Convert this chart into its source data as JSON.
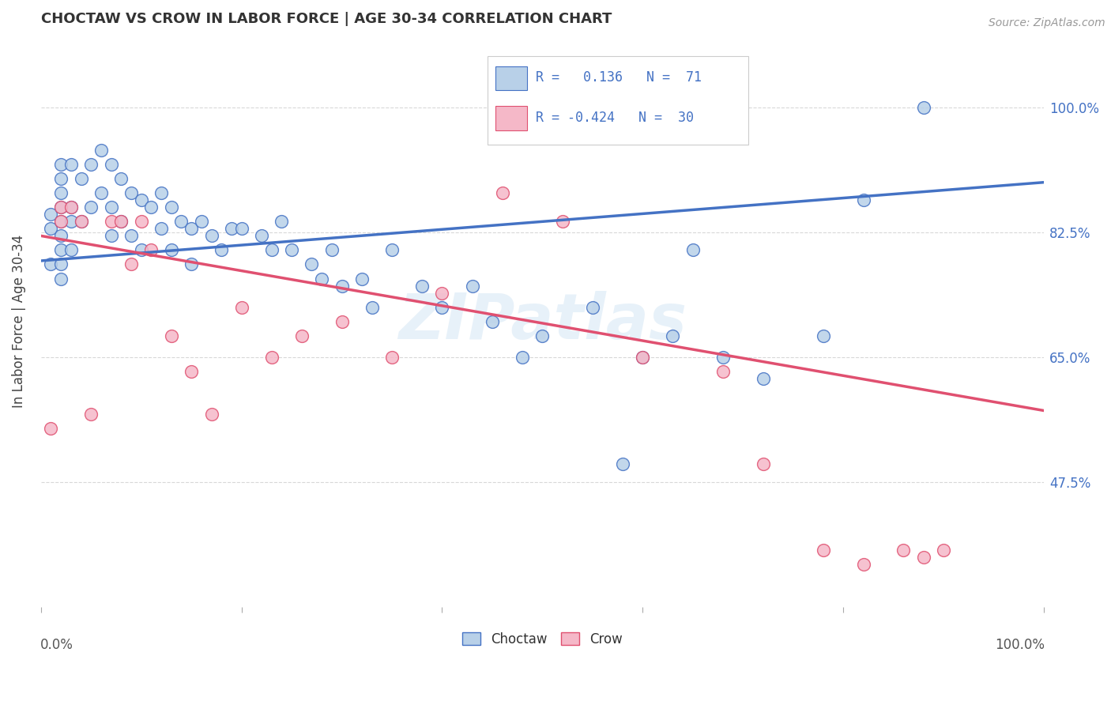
{
  "title": "CHOCTAW VS CROW IN LABOR FORCE | AGE 30-34 CORRELATION CHART",
  "source": "Source: ZipAtlas.com",
  "ylabel": "In Labor Force | Age 30-34",
  "xlim": [
    0.0,
    1.0
  ],
  "ylim": [
    0.3,
    1.1
  ],
  "y_ticks_right": [
    1.0,
    0.825,
    0.65,
    0.475
  ],
  "y_tick_labels_right": [
    "100.0%",
    "82.5%",
    "65.0%",
    "47.5%"
  ],
  "choctaw_color": "#b8d0e8",
  "crow_color": "#f5b8c8",
  "choctaw_line_color": "#4472c4",
  "crow_line_color": "#e05070",
  "r_choctaw": "0.136",
  "n_choctaw": "71",
  "r_crow": "-0.424",
  "n_crow": "30",
  "watermark": "ZIPatlas",
  "background_color": "#ffffff",
  "grid_color": "#d8d8d8",
  "choctaw_x": [
    0.01,
    0.01,
    0.01,
    0.02,
    0.02,
    0.02,
    0.02,
    0.02,
    0.02,
    0.02,
    0.02,
    0.02,
    0.03,
    0.03,
    0.03,
    0.03,
    0.04,
    0.04,
    0.05,
    0.05,
    0.06,
    0.06,
    0.07,
    0.07,
    0.07,
    0.08,
    0.08,
    0.09,
    0.09,
    0.1,
    0.1,
    0.11,
    0.12,
    0.12,
    0.13,
    0.13,
    0.14,
    0.15,
    0.15,
    0.16,
    0.17,
    0.18,
    0.19,
    0.2,
    0.22,
    0.23,
    0.24,
    0.25,
    0.27,
    0.28,
    0.29,
    0.3,
    0.32,
    0.33,
    0.35,
    0.38,
    0.4,
    0.43,
    0.45,
    0.48,
    0.5,
    0.55,
    0.58,
    0.6,
    0.63,
    0.65,
    0.68,
    0.72,
    0.78,
    0.82,
    0.88
  ],
  "choctaw_y": [
    0.85,
    0.83,
    0.78,
    0.92,
    0.9,
    0.88,
    0.86,
    0.84,
    0.82,
    0.8,
    0.78,
    0.76,
    0.92,
    0.86,
    0.84,
    0.8,
    0.9,
    0.84,
    0.92,
    0.86,
    0.94,
    0.88,
    0.92,
    0.86,
    0.82,
    0.9,
    0.84,
    0.88,
    0.82,
    0.87,
    0.8,
    0.86,
    0.88,
    0.83,
    0.86,
    0.8,
    0.84,
    0.83,
    0.78,
    0.84,
    0.82,
    0.8,
    0.83,
    0.83,
    0.82,
    0.8,
    0.84,
    0.8,
    0.78,
    0.76,
    0.8,
    0.75,
    0.76,
    0.72,
    0.8,
    0.75,
    0.72,
    0.75,
    0.7,
    0.65,
    0.68,
    0.72,
    0.5,
    0.65,
    0.68,
    0.8,
    0.65,
    0.62,
    0.68,
    0.87,
    1.0
  ],
  "crow_x": [
    0.01,
    0.02,
    0.02,
    0.03,
    0.04,
    0.05,
    0.07,
    0.08,
    0.09,
    0.1,
    0.11,
    0.13,
    0.15,
    0.17,
    0.2,
    0.23,
    0.26,
    0.3,
    0.35,
    0.4,
    0.46,
    0.52,
    0.6,
    0.68,
    0.72,
    0.78,
    0.82,
    0.86,
    0.88,
    0.9
  ],
  "crow_y": [
    0.55,
    0.86,
    0.84,
    0.86,
    0.84,
    0.57,
    0.84,
    0.84,
    0.78,
    0.84,
    0.8,
    0.68,
    0.63,
    0.57,
    0.72,
    0.65,
    0.68,
    0.7,
    0.65,
    0.74,
    0.88,
    0.84,
    0.65,
    0.63,
    0.5,
    0.38,
    0.36,
    0.38,
    0.37,
    0.38
  ]
}
